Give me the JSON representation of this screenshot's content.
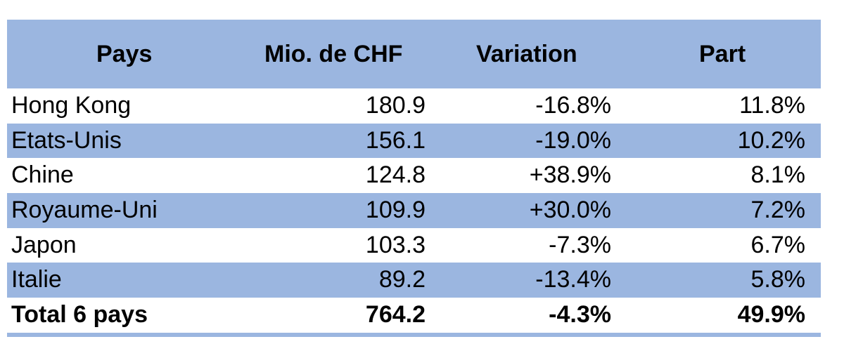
{
  "chart_data": {
    "type": "table",
    "columns": [
      "Pays",
      "Mio. de CHF",
      "Variation",
      "Part"
    ],
    "rows": [
      {
        "country": "Hong Kong",
        "value": "180.9",
        "variation": "-16.8%",
        "share": "11.8%"
      },
      {
        "country": "Etats-Unis",
        "value": "156.1",
        "variation": "-19.0%",
        "share": "10.2%"
      },
      {
        "country": "Chine",
        "value": "124.8",
        "variation": "+38.9%",
        "share": "8.1%"
      },
      {
        "country": "Royaume-Uni",
        "value": "109.9",
        "variation": "+30.0%",
        "share": "7.2%"
      },
      {
        "country": "Japon",
        "value": "103.3",
        "variation": "-7.3%",
        "share": "6.7%"
      },
      {
        "country": "Italie",
        "value": "89.2",
        "variation": "-13.4%",
        "share": "5.8%"
      }
    ],
    "total": {
      "country": "Total 6 pays",
      "value": "764.2",
      "variation": "-4.3%",
      "share": "49.9%"
    }
  },
  "colors": {
    "band": "#9bb6e0",
    "background": "#ffffff",
    "text": "#000000"
  }
}
